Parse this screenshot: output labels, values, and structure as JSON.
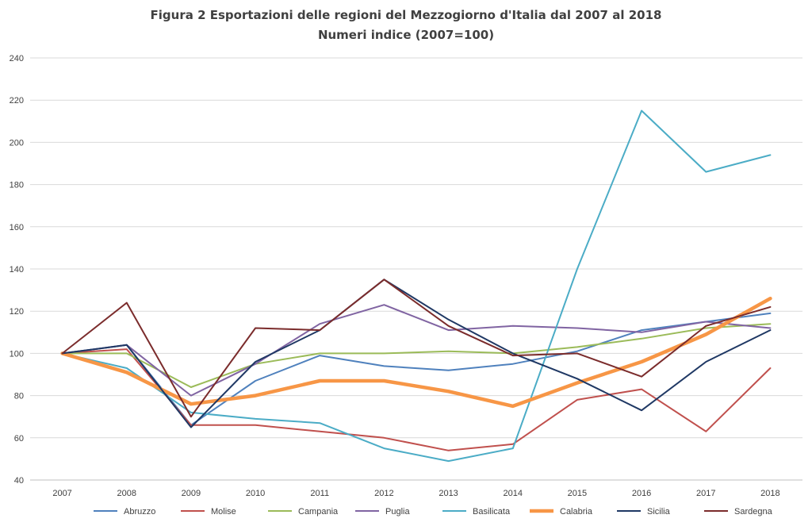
{
  "chart_data": {
    "type": "line",
    "title": "Figura 2 Esportazioni delle regioni del Mezzogiorno d'Italia dal 2007 al 2018",
    "subtitle": "Numeri indice (2007=100)",
    "xlabel": "",
    "ylabel": "",
    "categories": [
      "2007",
      "2008",
      "2009",
      "2010",
      "2011",
      "2012",
      "2013",
      "2014",
      "2015",
      "2016",
      "2017",
      "2018"
    ],
    "ylim": [
      40,
      240
    ],
    "yticks": [
      40,
      60,
      80,
      100,
      120,
      140,
      160,
      180,
      200,
      220,
      240
    ],
    "grid": true,
    "legend_position": "bottom",
    "series": [
      {
        "name": "Abruzzo",
        "color": "#4f81bd",
        "width": 2,
        "values": [
          100,
          104,
          66,
          87,
          99,
          94,
          92,
          95,
          101,
          111,
          115,
          119
        ]
      },
      {
        "name": "Molise",
        "color": "#c0504d",
        "width": 2,
        "values": [
          100,
          102,
          66,
          66,
          63,
          60,
          54,
          57,
          78,
          83,
          63,
          93
        ]
      },
      {
        "name": "Campania",
        "color": "#9bbb59",
        "width": 2,
        "values": [
          100,
          100,
          84,
          95,
          100,
          100,
          101,
          100,
          103,
          107,
          112,
          114
        ]
      },
      {
        "name": "Puglia",
        "color": "#8064a2",
        "width": 2,
        "values": [
          100,
          104,
          80,
          95,
          114,
          123,
          111,
          113,
          112,
          110,
          115,
          112
        ]
      },
      {
        "name": "Basilicata",
        "color": "#4bacc6",
        "width": 2,
        "values": [
          100,
          93,
          72,
          69,
          67,
          55,
          49,
          55,
          140,
          215,
          186,
          194
        ]
      },
      {
        "name": "Calabria",
        "color": "#f79646",
        "width": 4.5,
        "values": [
          100,
          91,
          76,
          80,
          87,
          87,
          82,
          75,
          86,
          96,
          109,
          126
        ]
      },
      {
        "name": "Sicilia",
        "color": "#1f3864",
        "width": 2,
        "values": [
          100,
          104,
          65,
          96,
          111,
          135,
          116,
          100,
          88,
          73,
          96,
          111
        ]
      },
      {
        "name": "Sardegna",
        "color": "#7b2c2c",
        "width": 2,
        "values": [
          100,
          124,
          70,
          112,
          111,
          135,
          113,
          99,
          100,
          89,
          113,
          122
        ]
      }
    ]
  }
}
